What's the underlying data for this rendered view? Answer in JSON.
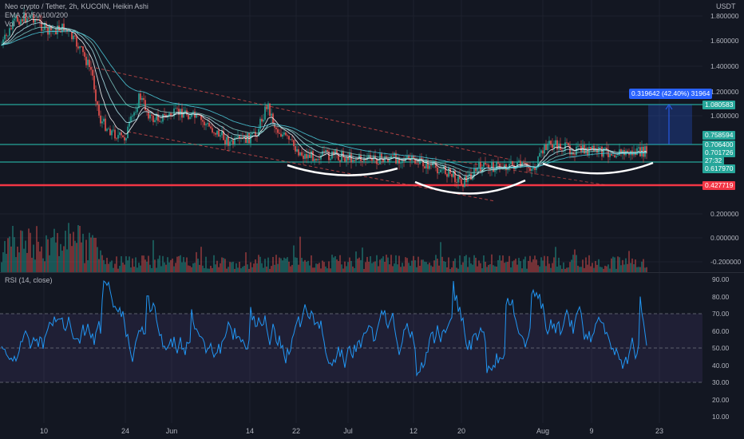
{
  "legend": {
    "symbol_line": "Neo crypto / Tether, 2h, KUCOIN, Heikin Ashi",
    "ema_line": "EMA 20/50/100/200",
    "vol_line": "Vol"
  },
  "currency": "USDT",
  "price_axis": {
    "labels": [
      "1.800000",
      "1.600000",
      "1.400000",
      "1.200000",
      "1.000000",
      "0.200000",
      "0.000000",
      "-0.200000"
    ]
  },
  "price_tags": [
    {
      "text": "1.080583",
      "color": "#26a69a"
    },
    {
      "text": "0.758594",
      "color": "#26a69a"
    },
    {
      "text": "0.706400",
      "color": "#26a69a"
    },
    {
      "text": "0.701726",
      "color": "#26a69a"
    },
    {
      "text": "27:32",
      "color": "#26a69a"
    },
    {
      "text": "0.617970",
      "color": "#26a69a"
    },
    {
      "text": "0.427719",
      "color": "#f23645"
    }
  ],
  "measure": {
    "label": "0.319642 (42.40%) 31964"
  },
  "rsi": {
    "title": "RSI (14, close)",
    "labels": [
      "90.00",
      "80.00",
      "70.00",
      "60.00",
      "50.00",
      "40.00",
      "30.00",
      "20.00",
      "10.00"
    ]
  },
  "x_axis": {
    "labels": [
      "10",
      "24",
      "Jun",
      "14",
      "22",
      "Jul",
      "12",
      "20",
      "Aug",
      "9",
      "23"
    ]
  },
  "colors": {
    "background": "#131722",
    "up": "#26a69a",
    "down": "#ef5350",
    "hline": "#26a69a",
    "support": "#f23645",
    "rsi_line": "#2196f3",
    "rsi_band": "#7e57c2"
  }
}
